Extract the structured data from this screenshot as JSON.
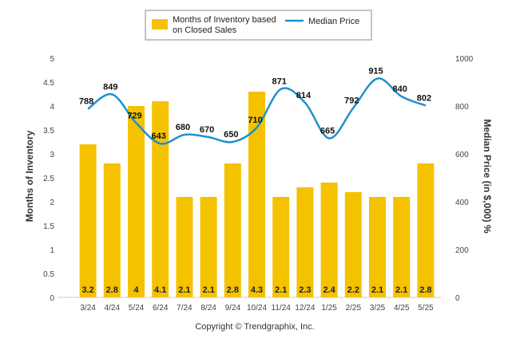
{
  "chart_data": {
    "type": "bar",
    "categories": [
      "3/24",
      "4/24",
      "5/24",
      "6/24",
      "7/24",
      "8/24",
      "9/24",
      "10/24",
      "11/24",
      "12/24",
      "1/25",
      "2/25",
      "3/25",
      "4/25",
      "5/25"
    ],
    "series": [
      {
        "name": "Months of Inventory based on Closed Sales",
        "name_lines": [
          "Months of Inventory based",
          "on Closed Sales"
        ],
        "type": "bar",
        "axis": "left",
        "color": "#F5C200",
        "values": [
          3.2,
          2.8,
          4,
          4.1,
          2.1,
          2.1,
          2.8,
          4.3,
          2.1,
          2.3,
          2.4,
          2.2,
          2.1,
          2.1,
          2.8
        ],
        "labels": [
          "3.2",
          "2.8",
          "4",
          "4.1",
          "2.1",
          "2.1",
          "2.8",
          "4.3",
          "2.1",
          "2.3",
          "2.4",
          "2.2",
          "2.1",
          "2.1",
          "2.8"
        ]
      },
      {
        "name": "Median Price",
        "type": "line",
        "axis": "right",
        "color": "#1E90D0",
        "values": [
          788,
          849,
          729,
          643,
          680,
          670,
          650,
          710,
          871,
          814,
          665,
          792,
          915,
          840,
          802
        ],
        "labels": [
          "788",
          "849",
          "729",
          "643",
          "680",
          "670",
          "650",
          "710",
          "871",
          "814",
          "665",
          "792",
          "915",
          "840",
          "802"
        ]
      }
    ],
    "ylabel": "Months of Inventory",
    "ylim": [
      0,
      5
    ],
    "yticks": [
      "0",
      "0.5",
      "1",
      "1.5",
      "2",
      "2.5",
      "3",
      "3.5",
      "4",
      "4.5",
      "5"
    ],
    "y2label": "Median Price (in $,000) %",
    "y2lim": [
      0,
      1000
    ],
    "y2ticks": [
      "0",
      "200",
      "400",
      "600",
      "800",
      "1000"
    ],
    "grid": false,
    "legend_position": "top"
  },
  "copyright": "Copyright © Trendgraphix, Inc."
}
